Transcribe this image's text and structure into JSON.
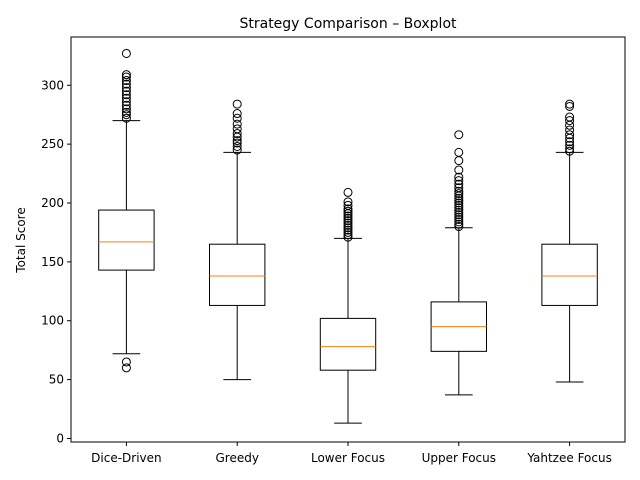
{
  "chart_data": {
    "type": "boxplot",
    "title": "Strategy Comparison – Boxplot",
    "xlabel": "",
    "ylabel": "Total Score",
    "ylim": [
      -3,
      341
    ],
    "yticks": [
      0,
      50,
      100,
      150,
      200,
      250,
      300
    ],
    "grid": false,
    "categories": [
      "Dice-Driven",
      "Greedy",
      "Lower Focus",
      "Upper Focus",
      "Yahtzee Focus"
    ],
    "boxes": [
      {
        "category": "Dice-Driven",
        "whisker_low": 72,
        "q1": 143,
        "median": 167,
        "q3": 194,
        "whisker_high": 270,
        "outliers": [
          60,
          65,
          272,
          275,
          277,
          280,
          283,
          286,
          289,
          292,
          295,
          298,
          301,
          304,
          307,
          309,
          327
        ]
      },
      {
        "category": "Greedy",
        "whisker_low": 50,
        "q1": 113,
        "median": 138,
        "q3": 165,
        "whisker_high": 243,
        "outliers": [
          245,
          248,
          251,
          253,
          256,
          259,
          263,
          267,
          272,
          276,
          284
        ]
      },
      {
        "category": "Lower Focus",
        "whisker_low": 13,
        "q1": 58,
        "median": 78,
        "q3": 102,
        "whisker_high": 170,
        "outliers": [
          171,
          173,
          175,
          177,
          179,
          181,
          183,
          185,
          187,
          189,
          191,
          193,
          195,
          198,
          201,
          209
        ]
      },
      {
        "category": "Upper Focus",
        "whisker_low": 37,
        "q1": 74,
        "median": 95,
        "q3": 116,
        "whisker_high": 179,
        "outliers": [
          180,
          182,
          184,
          186,
          188,
          190,
          192,
          194,
          196,
          198,
          200,
          202,
          204,
          206,
          208,
          210,
          213,
          216,
          219,
          222,
          228,
          236,
          243,
          258
        ]
      },
      {
        "category": "Yahtzee Focus",
        "whisker_low": 48,
        "q1": 113,
        "median": 138,
        "q3": 165,
        "whisker_high": 243,
        "outliers": [
          244,
          246,
          249,
          252,
          255,
          258,
          262,
          266,
          270,
          273,
          282,
          284
        ]
      }
    ],
    "colors": {
      "box": "#000000",
      "median": "#ff7f0e",
      "outlier": "#000000"
    }
  }
}
